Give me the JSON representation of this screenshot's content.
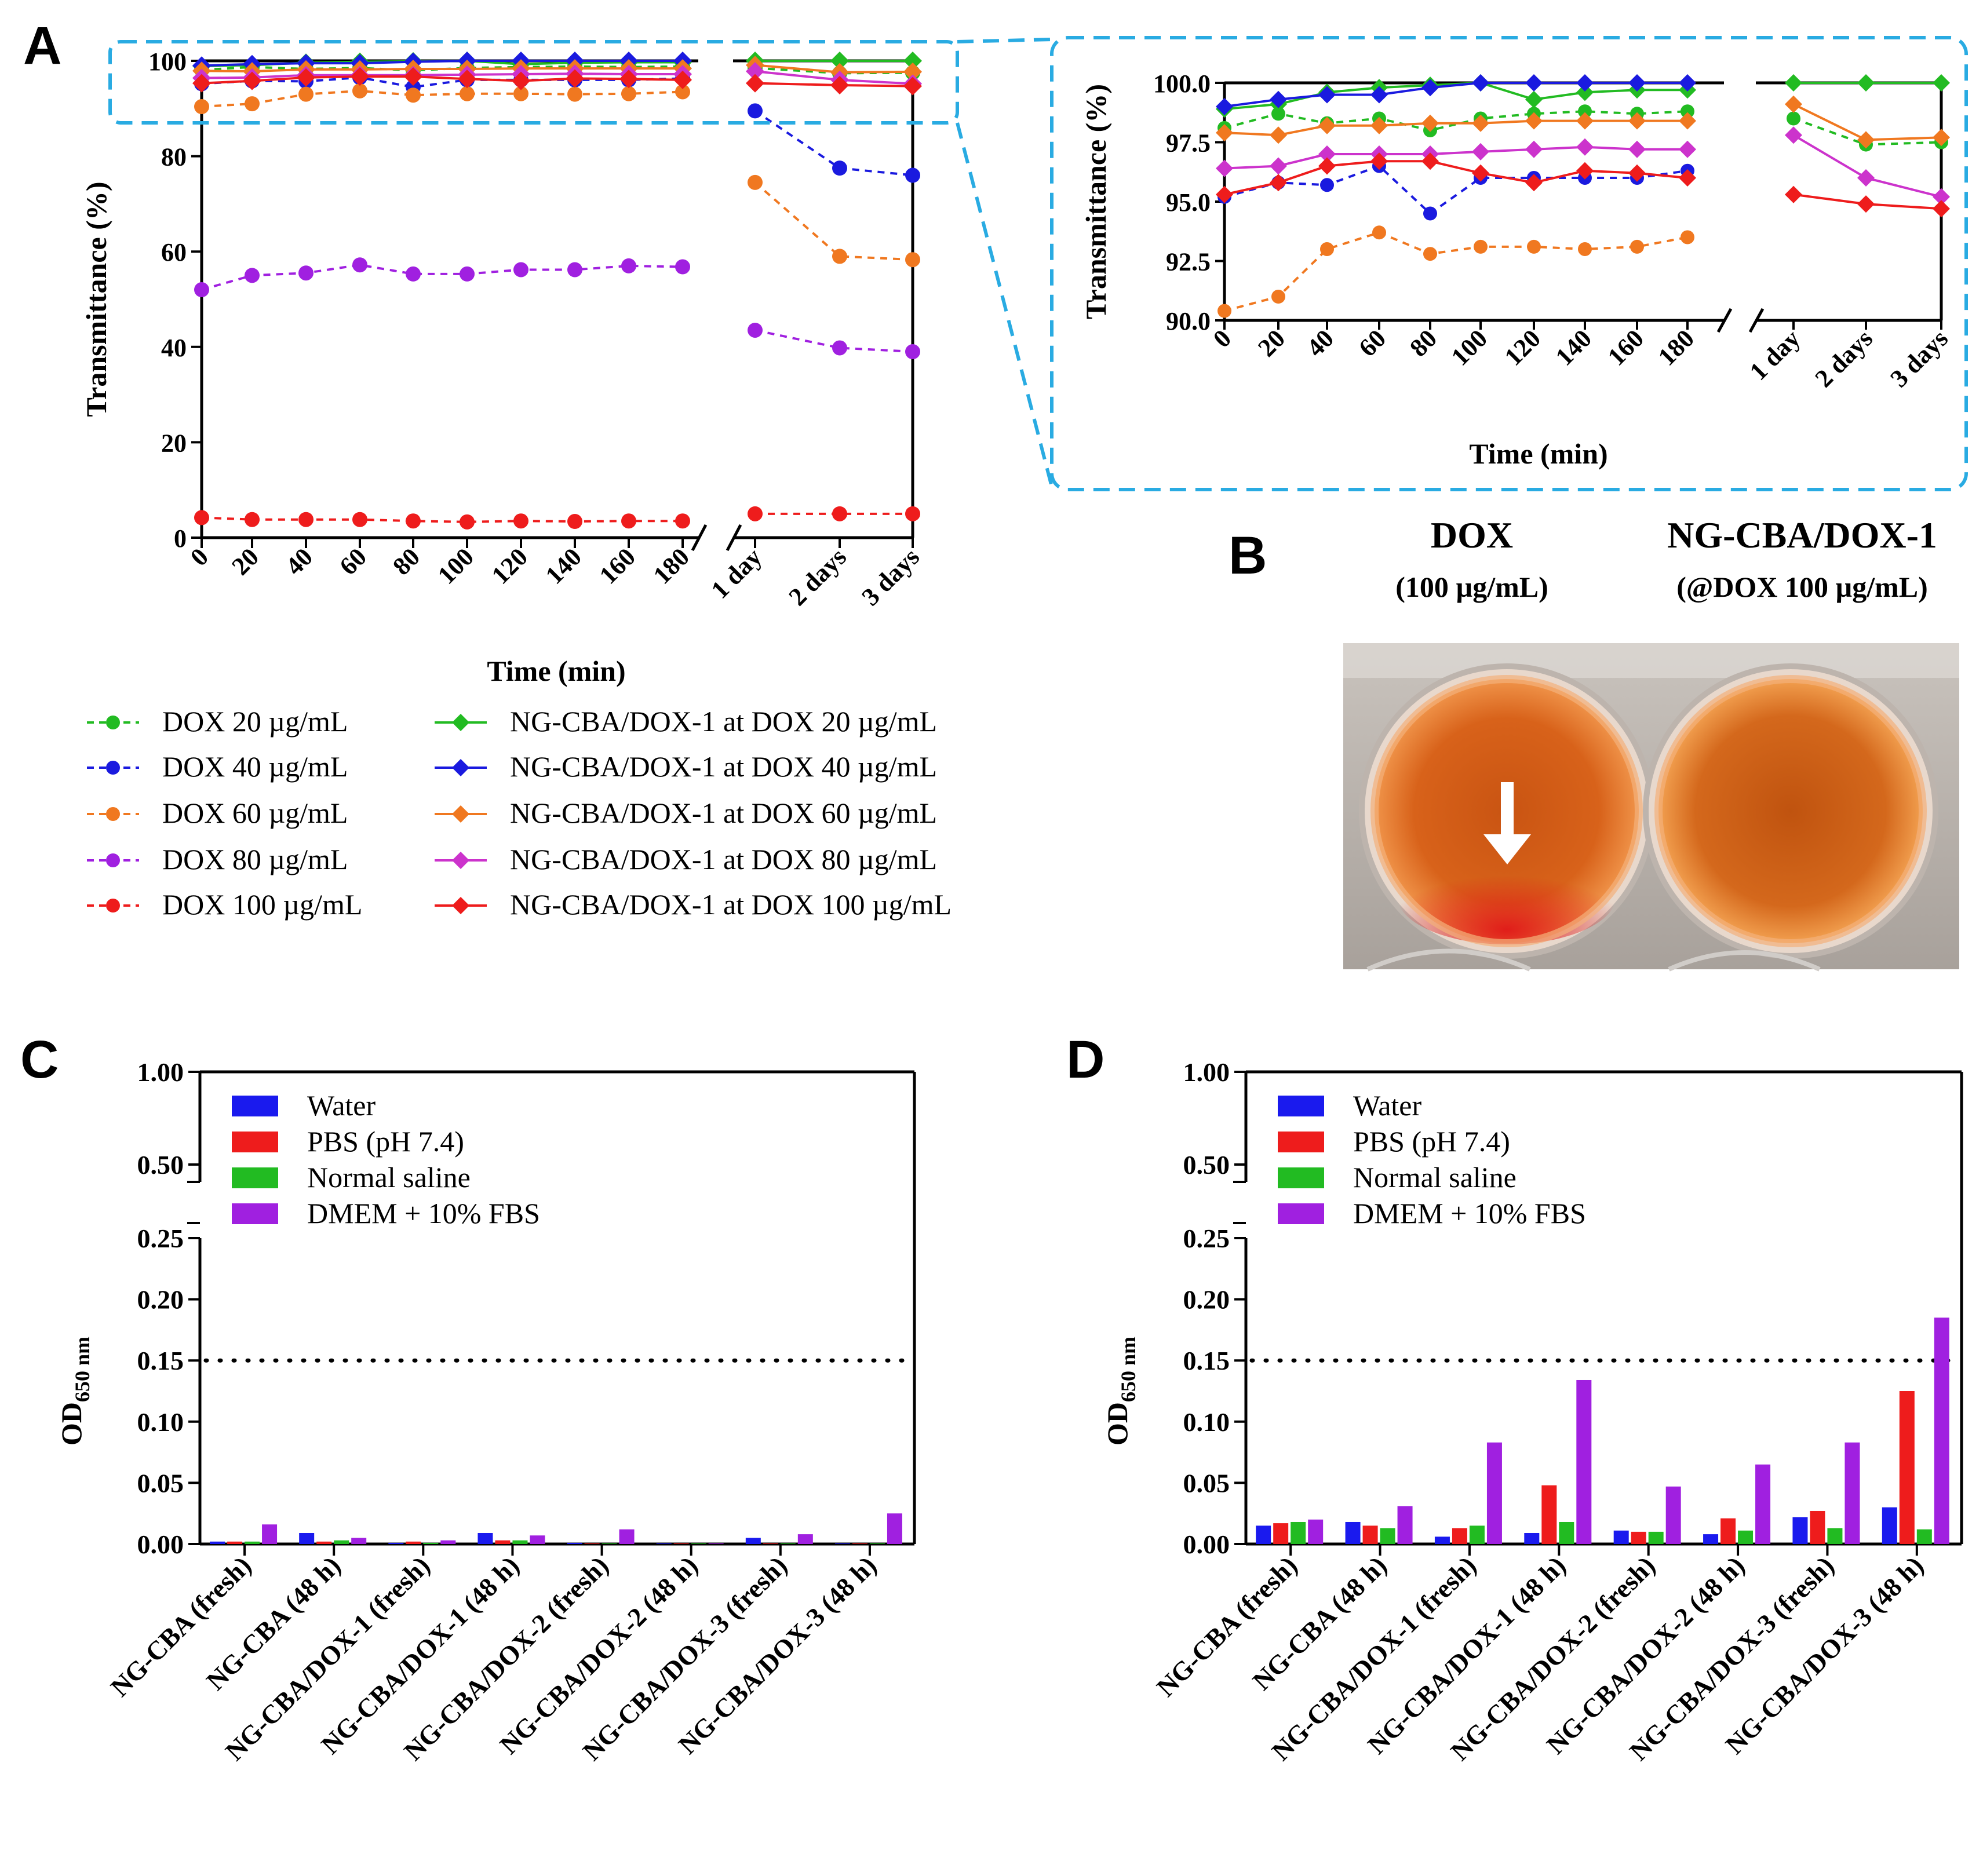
{
  "panels": {
    "A": {
      "letter": "A"
    },
    "B": {
      "letter": "B",
      "samples": [
        {
          "name": "DOX",
          "sub": "(100 µg/mL)"
        },
        {
          "name": "NG-CBA/DOX-1",
          "sub": "(@DOX 100 µg/mL)"
        }
      ],
      "photo": "photo of two wells of a well plate; left well shows red precipitate at bottom (marked by white arrow), right well is a clear orange solution"
    },
    "C": {
      "letter": "C"
    },
    "D": {
      "letter": "D"
    }
  },
  "chart_data": [
    {
      "id": "A-main",
      "type": "line",
      "ylabel": "Transmittance (%)",
      "xlabel": "Time (min)",
      "ylim": [
        0,
        100
      ],
      "yticks": [
        0,
        20,
        40,
        60,
        80,
        100
      ],
      "categories": [
        "0",
        "20",
        "40",
        "60",
        "80",
        "100",
        "120",
        "140",
        "160",
        "180",
        "1 day",
        "2 days",
        "3 days"
      ],
      "axis_break_after": "180",
      "series": [
        {
          "name": "DOX 20 µg/mL",
          "style": "dashed",
          "marker": "circle",
          "color": "#22bb22",
          "values": [
            98.1,
            98.7,
            98.3,
            98.5,
            98.0,
            98.5,
            98.7,
            98.8,
            98.7,
            98.8,
            98.5,
            97.4,
            97.5
          ]
        },
        {
          "name": "DOX 40 µg/mL",
          "style": "dashed",
          "marker": "circle",
          "color": "#1a1adf",
          "values": [
            95.2,
            95.8,
            95.7,
            96.5,
            94.5,
            96.0,
            96.0,
            96.0,
            96.0,
            96.3,
            89.5,
            77.5,
            76.0
          ]
        },
        {
          "name": "DOX 60 µg/mL",
          "style": "dashed",
          "marker": "circle",
          "color": "#f07820",
          "values": [
            90.4,
            91.0,
            93.0,
            93.7,
            92.8,
            93.1,
            93.1,
            93.0,
            93.1,
            93.5,
            74.5,
            59.0,
            58.3
          ]
        },
        {
          "name": "DOX 80 µg/mL",
          "style": "dashed",
          "marker": "circle",
          "color": "#a020e0",
          "values": [
            52.0,
            55.0,
            55.5,
            57.2,
            55.3,
            55.3,
            56.2,
            56.2,
            57.0,
            56.8,
            43.5,
            39.8,
            39.0
          ]
        },
        {
          "name": "DOX 100 µg/mL",
          "style": "dashed",
          "marker": "circle",
          "color": "#ee1c1c",
          "values": [
            4.2,
            3.8,
            3.8,
            3.8,
            3.5,
            3.3,
            3.5,
            3.4,
            3.5,
            3.5,
            5.0,
            5.0,
            5.0
          ]
        },
        {
          "name": "NG-CBA/DOX-1 at DOX 20 µg/mL",
          "style": "solid",
          "marker": "diamond",
          "color": "#22bb22",
          "values": [
            98.9,
            99.1,
            99.6,
            99.8,
            99.9,
            100.0,
            99.3,
            99.6,
            99.7,
            99.7,
            100.0,
            100.0,
            100.0
          ]
        },
        {
          "name": "NG-CBA/DOX-1 at DOX 40 µg/mL",
          "style": "solid",
          "marker": "diamond",
          "color": "#1a1adf",
          "values": [
            99.0,
            99.3,
            99.5,
            99.5,
            99.8,
            100.0,
            100.0,
            100.0,
            100.0,
            100.0,
            null,
            null,
            null
          ]
        },
        {
          "name": "NG-CBA/DOX-1 at DOX 60 µg/mL",
          "style": "solid",
          "marker": "diamond",
          "color": "#f07820",
          "values": [
            97.9,
            97.8,
            98.2,
            98.2,
            98.3,
            98.3,
            98.4,
            98.4,
            98.4,
            98.4,
            99.1,
            97.6,
            97.7
          ]
        },
        {
          "name": "NG-CBA/DOX-1 at DOX 80 µg/mL",
          "style": "solid",
          "marker": "diamond",
          "color": "#cc33cc",
          "values": [
            96.4,
            96.5,
            97.0,
            97.0,
            97.0,
            97.1,
            97.2,
            97.3,
            97.2,
            97.2,
            97.8,
            96.0,
            95.2
          ]
        },
        {
          "name": "NG-CBA/DOX-1 at DOX 100 µg/mL",
          "style": "solid",
          "marker": "diamond",
          "color": "#ee1c1c",
          "values": [
            95.3,
            95.8,
            96.5,
            96.7,
            96.7,
            96.2,
            95.8,
            96.3,
            96.2,
            96.0,
            95.3,
            94.9,
            94.7
          ]
        }
      ],
      "inset": {
        "ylim": [
          90.0,
          100.0
        ],
        "yticks": [
          "90.0",
          "92.5",
          "95.0",
          "97.5",
          "100.0"
        ],
        "ylabel": "Transmittance (%)",
        "xlabel": "Time (min)"
      }
    },
    {
      "id": "C",
      "type": "bar",
      "ylabel": "OD",
      "ylabel_sub": "650 nm",
      "ylim": [
        0,
        1.0
      ],
      "axis_break": [
        0.25,
        0.5
      ],
      "yticks": [
        "0.00",
        "0.05",
        "0.10",
        "0.15",
        "0.20",
        "0.25",
        "0.50",
        "1.00"
      ],
      "threshold": 0.15,
      "categories": [
        "NG-CBA (fresh)",
        "NG-CBA (48 h)",
        "NG-CBA/DOX-1 (fresh)",
        "NG-CBA/DOX-1 (48 h)",
        "NG-CBA/DOX-2 (fresh)",
        "NG-CBA/DOX-2 (48 h)",
        "NG-CBA/DOX-3 (fresh)",
        "NG-CBA/DOX-3 (48 h)"
      ],
      "series": [
        {
          "name": "Water",
          "color": "#1a1aee",
          "values": [
            0.002,
            0.009,
            0.001,
            0.009,
            0.001,
            0.0,
            0.005,
            0.0
          ]
        },
        {
          "name": "PBS (pH 7.4)",
          "color": "#ee1c1c",
          "values": [
            0.002,
            0.002,
            0.002,
            0.003,
            0.0,
            0.0,
            0.0,
            0.0
          ]
        },
        {
          "name": "Normal saline",
          "color": "#22bb22",
          "values": [
            0.002,
            0.003,
            0.001,
            0.003,
            0.0,
            0.0,
            0.0,
            0.0
          ]
        },
        {
          "name": "DMEM + 10% FBS",
          "color": "#a020e0",
          "values": [
            0.016,
            0.005,
            0.003,
            0.007,
            0.012,
            0.0,
            0.008,
            0.025
          ]
        }
      ]
    },
    {
      "id": "D",
      "type": "bar",
      "ylabel": "OD",
      "ylabel_sub": "650 nm",
      "ylim": [
        0,
        1.0
      ],
      "axis_break": [
        0.25,
        0.5
      ],
      "yticks": [
        "0.00",
        "0.05",
        "0.10",
        "0.15",
        "0.20",
        "0.25",
        "0.50",
        "1.00"
      ],
      "threshold": 0.15,
      "categories": [
        "NG-CBA (fresh)",
        "NG-CBA (48 h)",
        "NG-CBA/DOX-1 (fresh)",
        "NG-CBA/DOX-1 (48 h)",
        "NG-CBA/DOX-2 (fresh)",
        "NG-CBA/DOX-2 (48 h)",
        "NG-CBA/DOX-3 (fresh)",
        "NG-CBA/DOX-3 (48 h)"
      ],
      "series": [
        {
          "name": "Water",
          "color": "#1a1aee",
          "values": [
            0.015,
            0.018,
            0.006,
            0.009,
            0.011,
            0.008,
            0.022,
            0.03
          ]
        },
        {
          "name": "PBS (pH 7.4)",
          "color": "#ee1c1c",
          "values": [
            0.017,
            0.015,
            0.013,
            0.048,
            0.01,
            0.021,
            0.027,
            0.125
          ]
        },
        {
          "name": "Normal saline",
          "color": "#22bb22",
          "values": [
            0.018,
            0.013,
            0.015,
            0.018,
            0.01,
            0.011,
            0.013,
            0.012
          ]
        },
        {
          "name": "DMEM + 10% FBS",
          "color": "#a020e0",
          "values": [
            0.02,
            0.031,
            0.083,
            0.134,
            0.047,
            0.065,
            0.083,
            0.185
          ]
        }
      ]
    }
  ]
}
